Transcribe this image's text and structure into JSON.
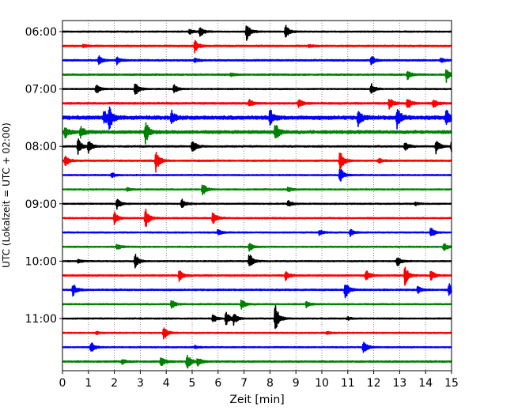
{
  "chart_data": {
    "type": "line",
    "subtype": "helicorder",
    "title": "",
    "xlabel": "Zeit  [min]",
    "ylabel": "UTC (Lokalzeit = UTC + 02:00)",
    "xlim": [
      0,
      15
    ],
    "xticks": [
      0,
      1,
      2,
      3,
      4,
      5,
      6,
      7,
      8,
      9,
      10,
      11,
      12,
      13,
      14,
      15
    ],
    "xtick_labels": [
      "0",
      "1",
      "2",
      "3",
      "4",
      "5",
      "6",
      "7",
      "8",
      "9",
      "10",
      "11",
      "12",
      "13",
      "14",
      "15"
    ],
    "vertical_grid": "dotted, every minute",
    "traces_per_hour": 4,
    "start_time": "06:00",
    "line_colors": [
      "#000000",
      "#ff0000",
      "#0000ff",
      "#008000"
    ],
    "yticks": [
      {
        "label": "06:00",
        "trace_index": 0
      },
      {
        "label": "07:00",
        "trace_index": 4
      },
      {
        "label": "08:00",
        "trace_index": 8
      },
      {
        "label": "09:00",
        "trace_index": 12
      },
      {
        "label": "10:00",
        "trace_index": 16
      },
      {
        "label": "11:00",
        "trace_index": 20
      }
    ],
    "series": [
      {
        "start": "06:00",
        "color": "#000000",
        "noise": 0.8,
        "events": [
          {
            "t": 5.3,
            "a": 7
          },
          {
            "t": 7.1,
            "a": 12
          },
          {
            "t": 8.6,
            "a": 9
          },
          {
            "t": 4.9,
            "a": 3
          }
        ]
      },
      {
        "start": "06:15",
        "color": "#ff0000",
        "noise": 1.0,
        "events": [
          {
            "t": 5.1,
            "a": 8
          },
          {
            "t": 0.8,
            "a": 2
          },
          {
            "t": 9.5,
            "a": 2
          }
        ]
      },
      {
        "start": "06:30",
        "color": "#0000ff",
        "noise": 1.0,
        "events": [
          {
            "t": 1.4,
            "a": 6
          },
          {
            "t": 2.1,
            "a": 5
          },
          {
            "t": 5.1,
            "a": 3
          },
          {
            "t": 11.9,
            "a": 6
          },
          {
            "t": 14.6,
            "a": 3
          }
        ]
      },
      {
        "start": "06:45",
        "color": "#008000",
        "noise": 1.0,
        "events": [
          {
            "t": 13.3,
            "a": 6
          },
          {
            "t": 14.8,
            "a": 9
          },
          {
            "t": 6.5,
            "a": 2
          }
        ]
      },
      {
        "start": "07:00",
        "color": "#000000",
        "noise": 0.8,
        "events": [
          {
            "t": 1.3,
            "a": 7
          },
          {
            "t": 2.8,
            "a": 9
          },
          {
            "t": 4.3,
            "a": 6
          },
          {
            "t": 11.9,
            "a": 7
          }
        ]
      },
      {
        "start": "07:15",
        "color": "#ff0000",
        "noise": 1.2,
        "events": [
          {
            "t": 7.2,
            "a": 5
          },
          {
            "t": 9.1,
            "a": 6
          },
          {
            "t": 12.6,
            "a": 7
          },
          {
            "t": 13.3,
            "a": 8
          },
          {
            "t": 14.3,
            "a": 6
          }
        ]
      },
      {
        "start": "07:30",
        "color": "#0000ff",
        "noise": 2.5,
        "events": [
          {
            "t": 1.6,
            "a": 9
          },
          {
            "t": 1.8,
            "a": 15
          },
          {
            "t": 4.2,
            "a": 9
          },
          {
            "t": 8.0,
            "a": 10
          },
          {
            "t": 11.4,
            "a": 10
          },
          {
            "t": 12.9,
            "a": 14
          },
          {
            "t": 14.8,
            "a": 12
          }
        ]
      },
      {
        "start": "07:45",
        "color": "#008000",
        "noise": 2.0,
        "events": [
          {
            "t": 0.1,
            "a": 8
          },
          {
            "t": 0.7,
            "a": 7
          },
          {
            "t": 3.2,
            "a": 14
          },
          {
            "t": 8.2,
            "a": 12
          }
        ]
      },
      {
        "start": "08:00",
        "color": "#000000",
        "noise": 1.0,
        "events": [
          {
            "t": 0.6,
            "a": 10
          },
          {
            "t": 1.0,
            "a": 9
          },
          {
            "t": 5.0,
            "a": 10
          },
          {
            "t": 13.2,
            "a": 6
          },
          {
            "t": 14.4,
            "a": 9
          },
          {
            "t": 15.0,
            "a": 9
          }
        ]
      },
      {
        "start": "08:15",
        "color": "#ff0000",
        "noise": 1.0,
        "events": [
          {
            "t": 0.1,
            "a": 8
          },
          {
            "t": 3.6,
            "a": 14
          },
          {
            "t": 10.7,
            "a": 14
          },
          {
            "t": 12.2,
            "a": 3
          }
        ]
      },
      {
        "start": "08:30",
        "color": "#0000ff",
        "noise": 0.8,
        "events": [
          {
            "t": 1.9,
            "a": 3
          },
          {
            "t": 10.7,
            "a": 10
          }
        ]
      },
      {
        "start": "08:45",
        "color": "#008000",
        "noise": 0.8,
        "events": [
          {
            "t": 5.4,
            "a": 9
          },
          {
            "t": 8.7,
            "a": 4
          },
          {
            "t": 2.5,
            "a": 2
          }
        ]
      },
      {
        "start": "09:00",
        "color": "#000000",
        "noise": 0.8,
        "events": [
          {
            "t": 2.1,
            "a": 7
          },
          {
            "t": 4.6,
            "a": 6
          },
          {
            "t": 8.7,
            "a": 4
          },
          {
            "t": 13.6,
            "a": 2
          }
        ]
      },
      {
        "start": "09:15",
        "color": "#ff0000",
        "noise": 0.8,
        "events": [
          {
            "t": 2.0,
            "a": 9
          },
          {
            "t": 3.2,
            "a": 14
          },
          {
            "t": 5.8,
            "a": 9
          }
        ]
      },
      {
        "start": "09:30",
        "color": "#0000ff",
        "noise": 0.8,
        "events": [
          {
            "t": 6.0,
            "a": 4
          },
          {
            "t": 9.9,
            "a": 4
          },
          {
            "t": 11.1,
            "a": 5
          },
          {
            "t": 14.2,
            "a": 7
          }
        ]
      },
      {
        "start": "09:45",
        "color": "#008000",
        "noise": 0.8,
        "events": [
          {
            "t": 2.1,
            "a": 4
          },
          {
            "t": 7.2,
            "a": 6
          },
          {
            "t": 14.7,
            "a": 6
          }
        ]
      },
      {
        "start": "10:00",
        "color": "#000000",
        "noise": 0.8,
        "events": [
          {
            "t": 2.8,
            "a": 9
          },
          {
            "t": 7.2,
            "a": 10
          },
          {
            "t": 12.9,
            "a": 7
          },
          {
            "t": 0.6,
            "a": 2
          }
        ]
      },
      {
        "start": "10:15",
        "color": "#ff0000",
        "noise": 1.0,
        "events": [
          {
            "t": 4.5,
            "a": 7
          },
          {
            "t": 8.6,
            "a": 6
          },
          {
            "t": 11.7,
            "a": 8
          },
          {
            "t": 13.2,
            "a": 13
          },
          {
            "t": 14.2,
            "a": 7
          }
        ]
      },
      {
        "start": "10:30",
        "color": "#0000ff",
        "noise": 1.0,
        "events": [
          {
            "t": 0.4,
            "a": 8
          },
          {
            "t": 10.9,
            "a": 12
          },
          {
            "t": 13.7,
            "a": 5
          },
          {
            "t": 14.9,
            "a": 8
          }
        ]
      },
      {
        "start": "10:45",
        "color": "#008000",
        "noise": 0.8,
        "events": [
          {
            "t": 4.2,
            "a": 6
          },
          {
            "t": 6.9,
            "a": 7
          },
          {
            "t": 9.4,
            "a": 4
          }
        ]
      },
      {
        "start": "11:00",
        "color": "#000000",
        "noise": 0.8,
        "events": [
          {
            "t": 5.8,
            "a": 6
          },
          {
            "t": 6.3,
            "a": 9
          },
          {
            "t": 6.6,
            "a": 7
          },
          {
            "t": 8.2,
            "a": 20
          },
          {
            "t": 11.0,
            "a": 2
          }
        ]
      },
      {
        "start": "11:15",
        "color": "#ff0000",
        "noise": 0.8,
        "events": [
          {
            "t": 3.9,
            "a": 9
          },
          {
            "t": 1.3,
            "a": 2
          },
          {
            "t": 10.2,
            "a": 2
          }
        ]
      },
      {
        "start": "11:30",
        "color": "#0000ff",
        "noise": 0.8,
        "events": [
          {
            "t": 1.1,
            "a": 8
          },
          {
            "t": 11.6,
            "a": 9
          },
          {
            "t": 5.1,
            "a": 2
          }
        ]
      },
      {
        "start": "11:45",
        "color": "#008000",
        "noise": 1.0,
        "events": [
          {
            "t": 3.8,
            "a": 7
          },
          {
            "t": 4.8,
            "a": 12
          },
          {
            "t": 5.2,
            "a": 6
          },
          {
            "t": 2.3,
            "a": 3
          }
        ]
      }
    ]
  }
}
